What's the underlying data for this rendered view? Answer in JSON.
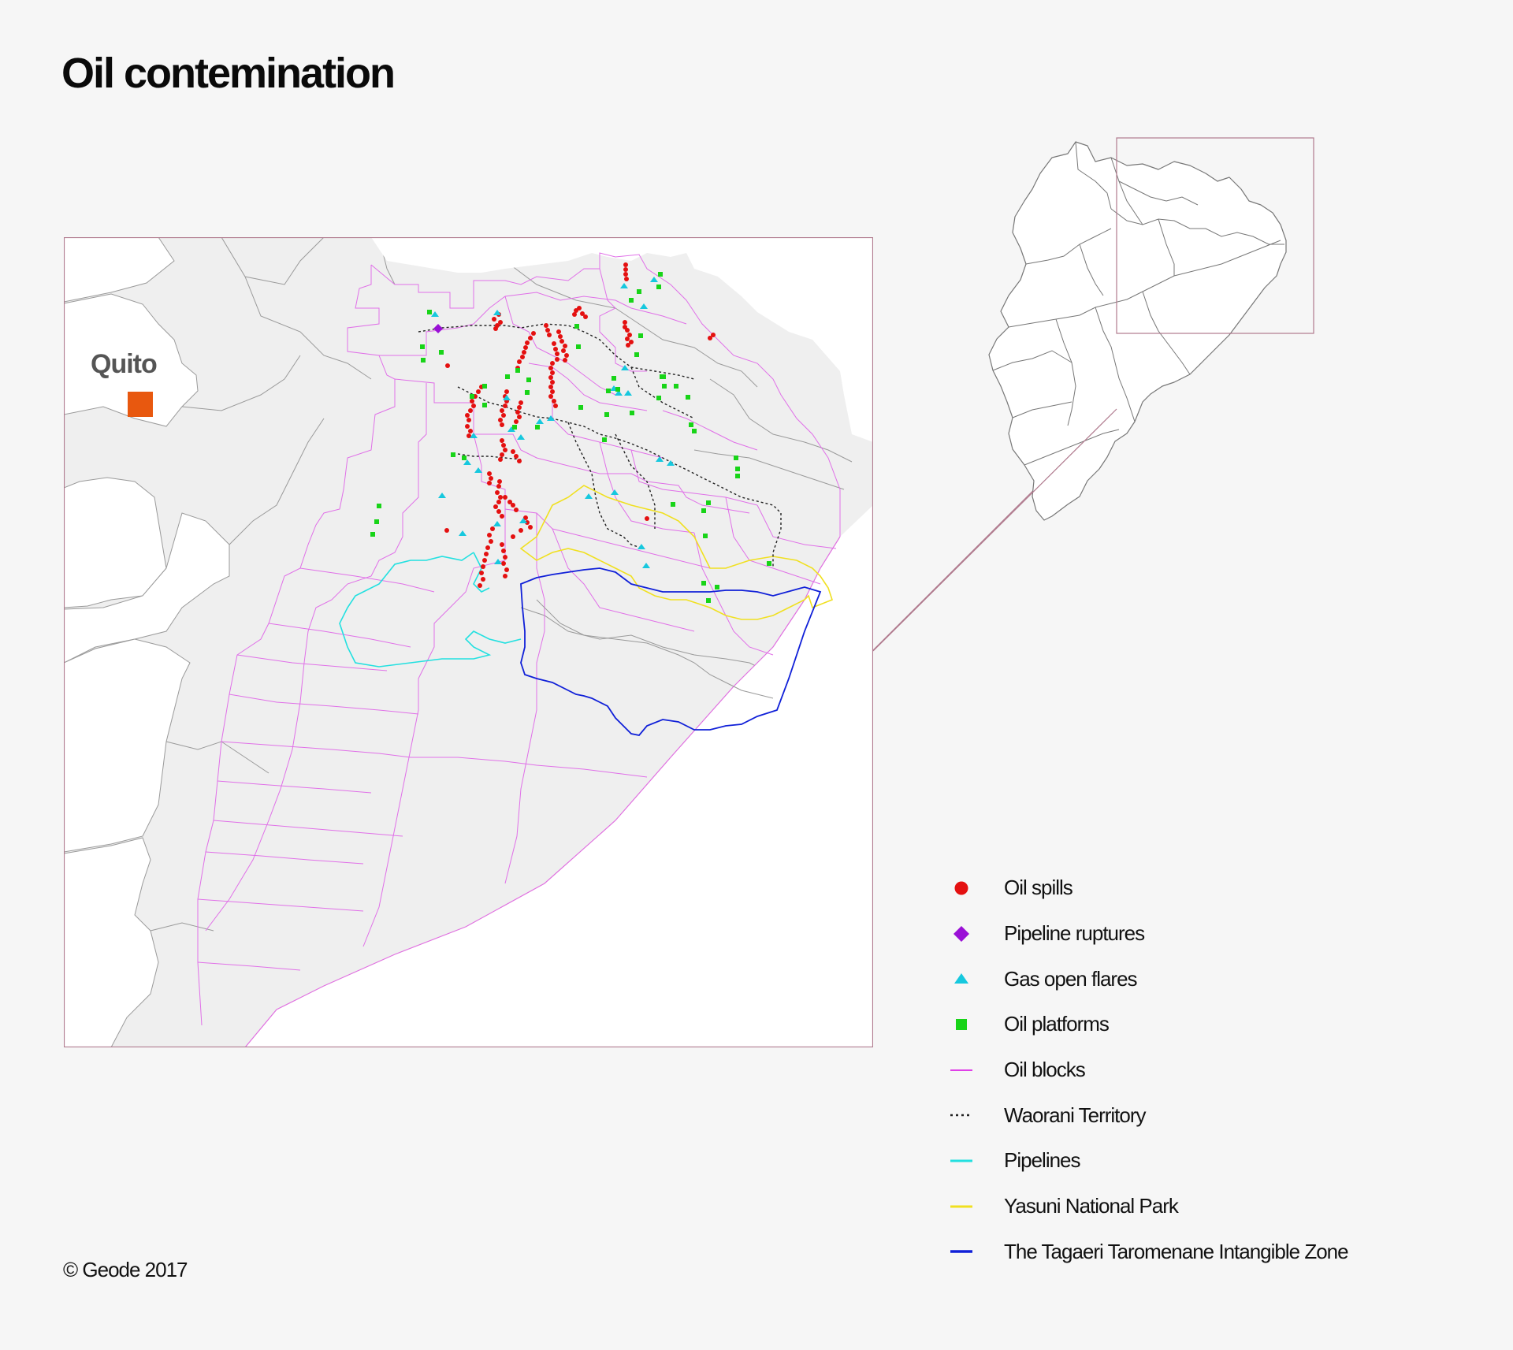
{
  "title": "Oil contemination",
  "city": {
    "name": "Quito",
    "color": "#e8580f"
  },
  "legend": [
    {
      "label": "Oil spills",
      "symbol": "circle",
      "color": "#e41010"
    },
    {
      "label": "Pipeline ruptures",
      "symbol": "diamond",
      "color": "#9a10d6"
    },
    {
      "label": "Gas open flares",
      "symbol": "triangle",
      "color": "#16c8de"
    },
    {
      "label": "Oil platforms",
      "symbol": "square",
      "color": "#18d418"
    },
    {
      "label": "Oil blocks",
      "symbol": "line",
      "color": "#e040e8"
    },
    {
      "label": "Waorani Territory",
      "symbol": "dotted-line",
      "color": "#222222"
    },
    {
      "label": "Pipelines",
      "symbol": "line",
      "color": "#22e0e0"
    },
    {
      "label": "Yasuni National Park",
      "symbol": "line",
      "color": "#f0e020"
    },
    {
      "label": "The Tagaeri Taromenane Intangible Zone",
      "symbol": "line",
      "color": "#1020d8"
    }
  ],
  "credit": "© Geode 2017"
}
